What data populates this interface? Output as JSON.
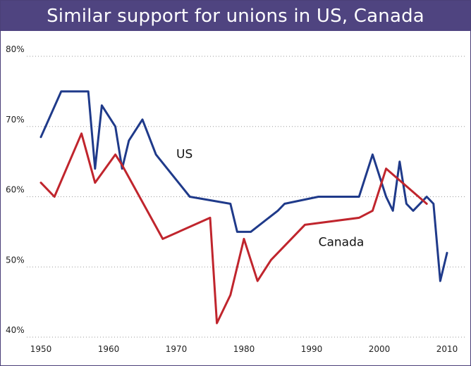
{
  "chart_data": {
    "type": "line",
    "title": "Similar support for unions in US, Canada",
    "xlabel": "",
    "ylabel": "",
    "xlim": [
      1948,
      2011
    ],
    "ylim": [
      40,
      80
    ],
    "x_ticks": [
      1950,
      1960,
      1970,
      1980,
      1990,
      2000,
      2010
    ],
    "y_ticks": [
      {
        "value": 40,
        "label": "40%"
      },
      {
        "value": 50,
        "label": "50%"
      },
      {
        "value": 60,
        "label": "60%"
      },
      {
        "value": 70,
        "label": "70%"
      },
      {
        "value": 80,
        "label": "80%"
      }
    ],
    "grid": "horizontal dotted",
    "series": [
      {
        "name": "US",
        "color": "#1f3a8a",
        "label_at": {
          "x": 1970,
          "y": 65.5
        },
        "points": [
          [
            1950,
            68.5
          ],
          [
            1953,
            75
          ],
          [
            1957,
            75
          ],
          [
            1958,
            64
          ],
          [
            1959,
            73
          ],
          [
            1961,
            70
          ],
          [
            1962,
            64
          ],
          [
            1963,
            68
          ],
          [
            1965,
            71
          ],
          [
            1967,
            66
          ],
          [
            1972,
            60
          ],
          [
            1978,
            59
          ],
          [
            1979,
            55
          ],
          [
            1981,
            55
          ],
          [
            1985,
            58
          ],
          [
            1986,
            59
          ],
          [
            1991,
            60
          ],
          [
            1997,
            60
          ],
          [
            1999,
            66
          ],
          [
            2001,
            60
          ],
          [
            2002,
            58
          ],
          [
            2003,
            65
          ],
          [
            2004,
            59
          ],
          [
            2005,
            58
          ],
          [
            2007,
            60
          ],
          [
            2008,
            59
          ],
          [
            2009,
            48
          ],
          [
            2010,
            52
          ]
        ]
      },
      {
        "name": "Canada",
        "color": "#c0252d",
        "label_at": {
          "x": 1991,
          "y": 53
        },
        "points": [
          [
            1950,
            62
          ],
          [
            1952,
            60
          ],
          [
            1956,
            69
          ],
          [
            1958,
            62
          ],
          [
            1961,
            66
          ],
          [
            1962,
            64.5
          ],
          [
            1968,
            54
          ],
          [
            1975,
            57
          ],
          [
            1976,
            42
          ],
          [
            1978,
            46
          ],
          [
            1980,
            54
          ],
          [
            1982,
            48
          ],
          [
            1984,
            51
          ],
          [
            1989,
            56
          ],
          [
            1997,
            57
          ],
          [
            1999,
            58
          ],
          [
            2001,
            64
          ],
          [
            2007,
            59
          ]
        ]
      }
    ]
  }
}
